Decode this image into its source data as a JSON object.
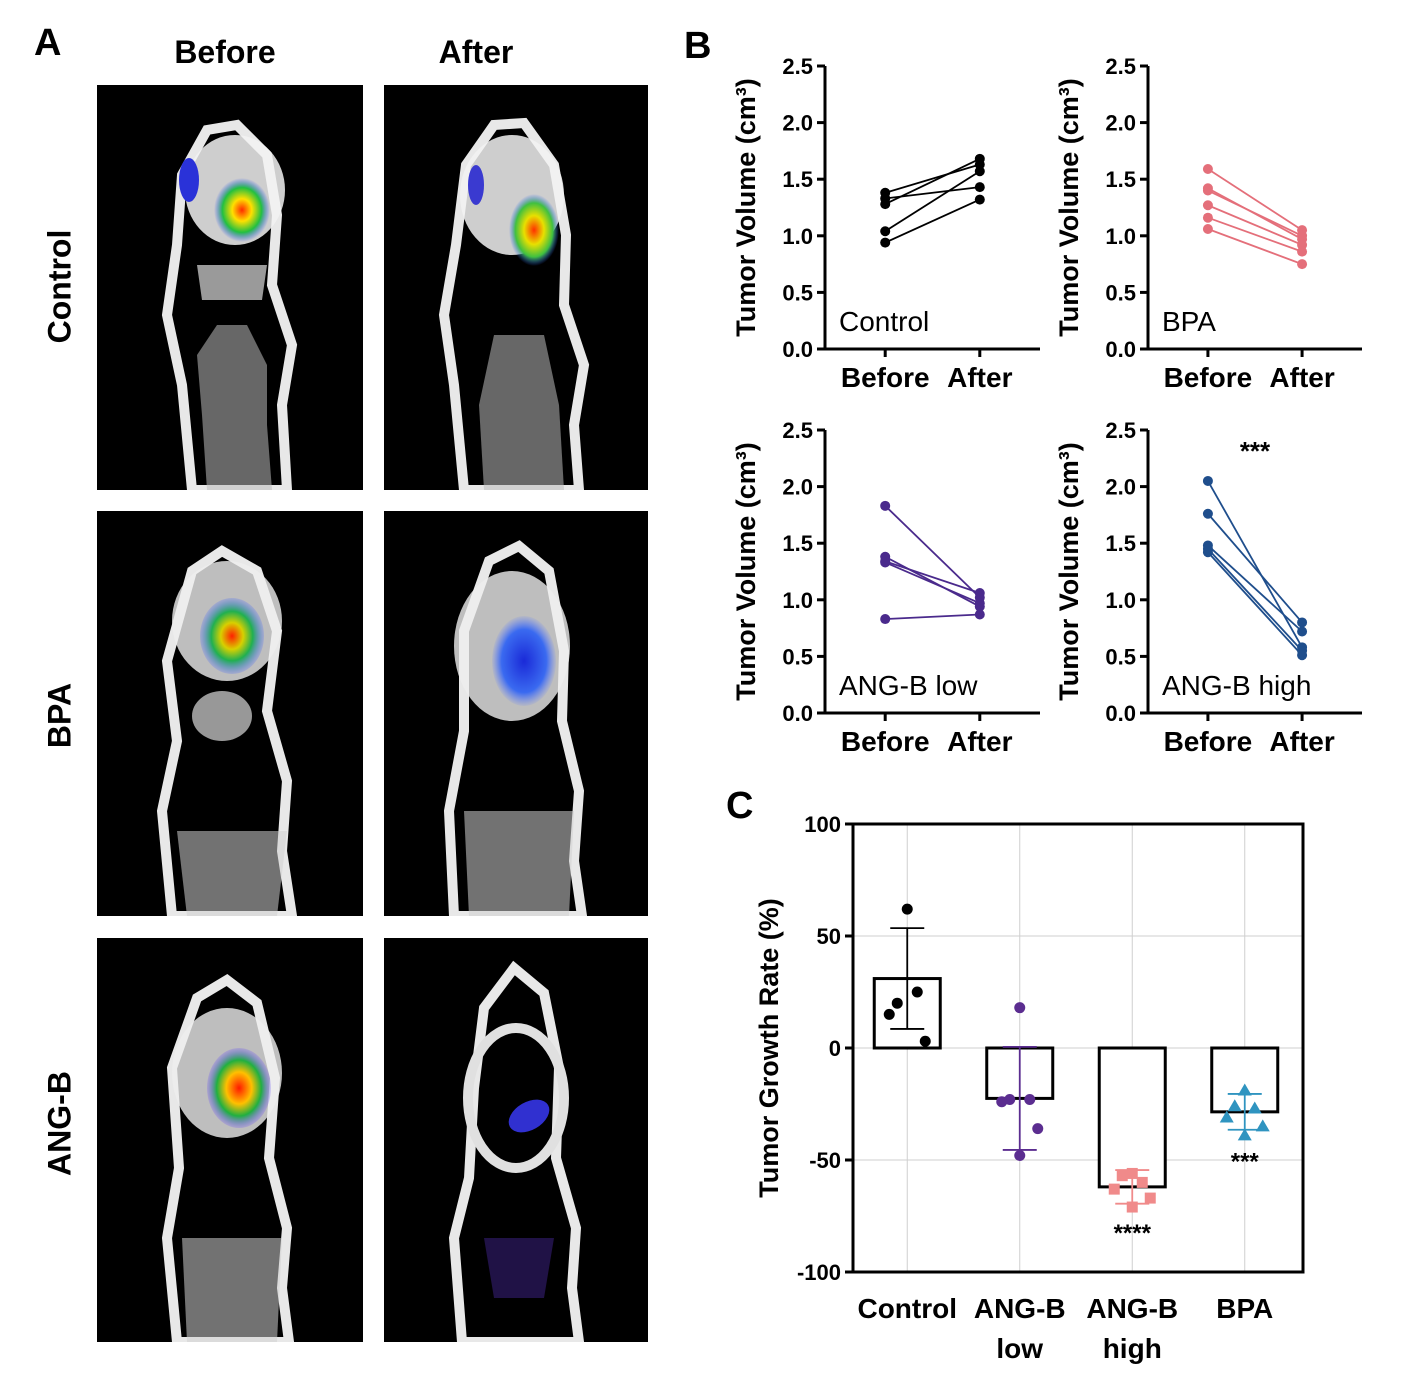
{
  "panel_a": {
    "label": "A",
    "columns": [
      "Before",
      "After"
    ],
    "rows": [
      "Control",
      "BPA",
      "ANG-B"
    ]
  },
  "chart_data": [
    {
      "id": "B1",
      "panel_label": "B",
      "type": "line",
      "title": "Control",
      "color": "#000000",
      "ylabel": "Tumor Volume (cm³)",
      "ylim": [
        0,
        2.5
      ],
      "yticks": [
        "0.0",
        "0.5",
        "1.0",
        "1.5",
        "2.0",
        "2.5"
      ],
      "categories": [
        "Before",
        "After"
      ],
      "pairs": [
        [
          1.38,
          1.63
        ],
        [
          1.33,
          1.43
        ],
        [
          1.28,
          1.68
        ],
        [
          1.04,
          1.57
        ],
        [
          0.94,
          1.32
        ]
      ],
      "annotation": ""
    },
    {
      "id": "B2",
      "type": "line",
      "title": "BPA",
      "color": "#e46f7a",
      "ylabel": "Tumor Volume (cm³)",
      "ylim": [
        0,
        2.5
      ],
      "yticks": [
        "0.0",
        "0.5",
        "1.0",
        "1.5",
        "2.0",
        "2.5"
      ],
      "categories": [
        "Before",
        "After"
      ],
      "pairs": [
        [
          1.59,
          1.05
        ],
        [
          1.42,
          0.97
        ],
        [
          1.4,
          1.0
        ],
        [
          1.27,
          0.92
        ],
        [
          1.16,
          0.86
        ],
        [
          1.06,
          0.75
        ]
      ],
      "annotation": ""
    },
    {
      "id": "B3",
      "type": "line",
      "title": "ANG-B low",
      "color": "#4a2a8c",
      "ylabel": "Tumor Volume (cm³)",
      "ylim": [
        0,
        2.5
      ],
      "yticks": [
        "0.0",
        "0.5",
        "1.0",
        "1.5",
        "2.0",
        "2.5"
      ],
      "categories": [
        "Before",
        "After"
      ],
      "pairs": [
        [
          1.83,
          1.02
        ],
        [
          1.38,
          0.94
        ],
        [
          1.34,
          1.06
        ],
        [
          1.33,
          0.97
        ],
        [
          0.83,
          0.87
        ]
      ],
      "annotation": ""
    },
    {
      "id": "B4",
      "type": "line",
      "title": "ANG-B high",
      "color": "#1f4e8c",
      "ylabel": "Tumor Volume (cm³)",
      "ylim": [
        0,
        2.5
      ],
      "yticks": [
        "0.0",
        "0.5",
        "1.0",
        "1.5",
        "2.0",
        "2.5"
      ],
      "categories": [
        "Before",
        "After"
      ],
      "pairs": [
        [
          2.05,
          0.58
        ],
        [
          1.76,
          0.8
        ],
        [
          1.48,
          0.72
        ],
        [
          1.45,
          0.55
        ],
        [
          1.42,
          0.51
        ]
      ],
      "annotation": "***"
    },
    {
      "id": "C",
      "panel_label": "C",
      "type": "bar",
      "ylabel": "Tumor Growth Rate (%)",
      "ylim": [
        -100,
        100
      ],
      "yticks": [
        "-100",
        "-50",
        "0",
        "50",
        "100"
      ],
      "grid": true,
      "categories": [
        {
          "line1": "Control",
          "line2": ""
        },
        {
          "line1": "ANG-B",
          "line2": "low"
        },
        {
          "line1": "ANG-B",
          "line2": "high"
        },
        {
          "line1": "BPA",
          "line2": ""
        }
      ],
      "series": [
        {
          "name": "Control",
          "mean": 31,
          "sd": 22.5,
          "color": "#000000",
          "marker": "circle",
          "points": [
            62,
            20,
            25,
            15,
            3
          ],
          "significance": ""
        },
        {
          "name": "ANG-B low",
          "mean": -22.5,
          "sd": 23,
          "color": "#5b2d90",
          "marker": "circle",
          "points": [
            18,
            -23,
            -23,
            -24,
            -36,
            -48
          ],
          "significance": ""
        },
        {
          "name": "ANG-B high",
          "mean": -62,
          "sd": 7.5,
          "color": "#f08a8a",
          "marker": "square",
          "points": [
            -56,
            -57,
            -60,
            -63,
            -67,
            -71
          ],
          "significance": "****"
        },
        {
          "name": "BPA",
          "mean": -28.5,
          "sd": 8,
          "color": "#2f94c0",
          "marker": "triangle",
          "points": [
            -19,
            -26,
            -27,
            -31,
            -35,
            -39
          ],
          "significance": "***"
        }
      ]
    }
  ]
}
